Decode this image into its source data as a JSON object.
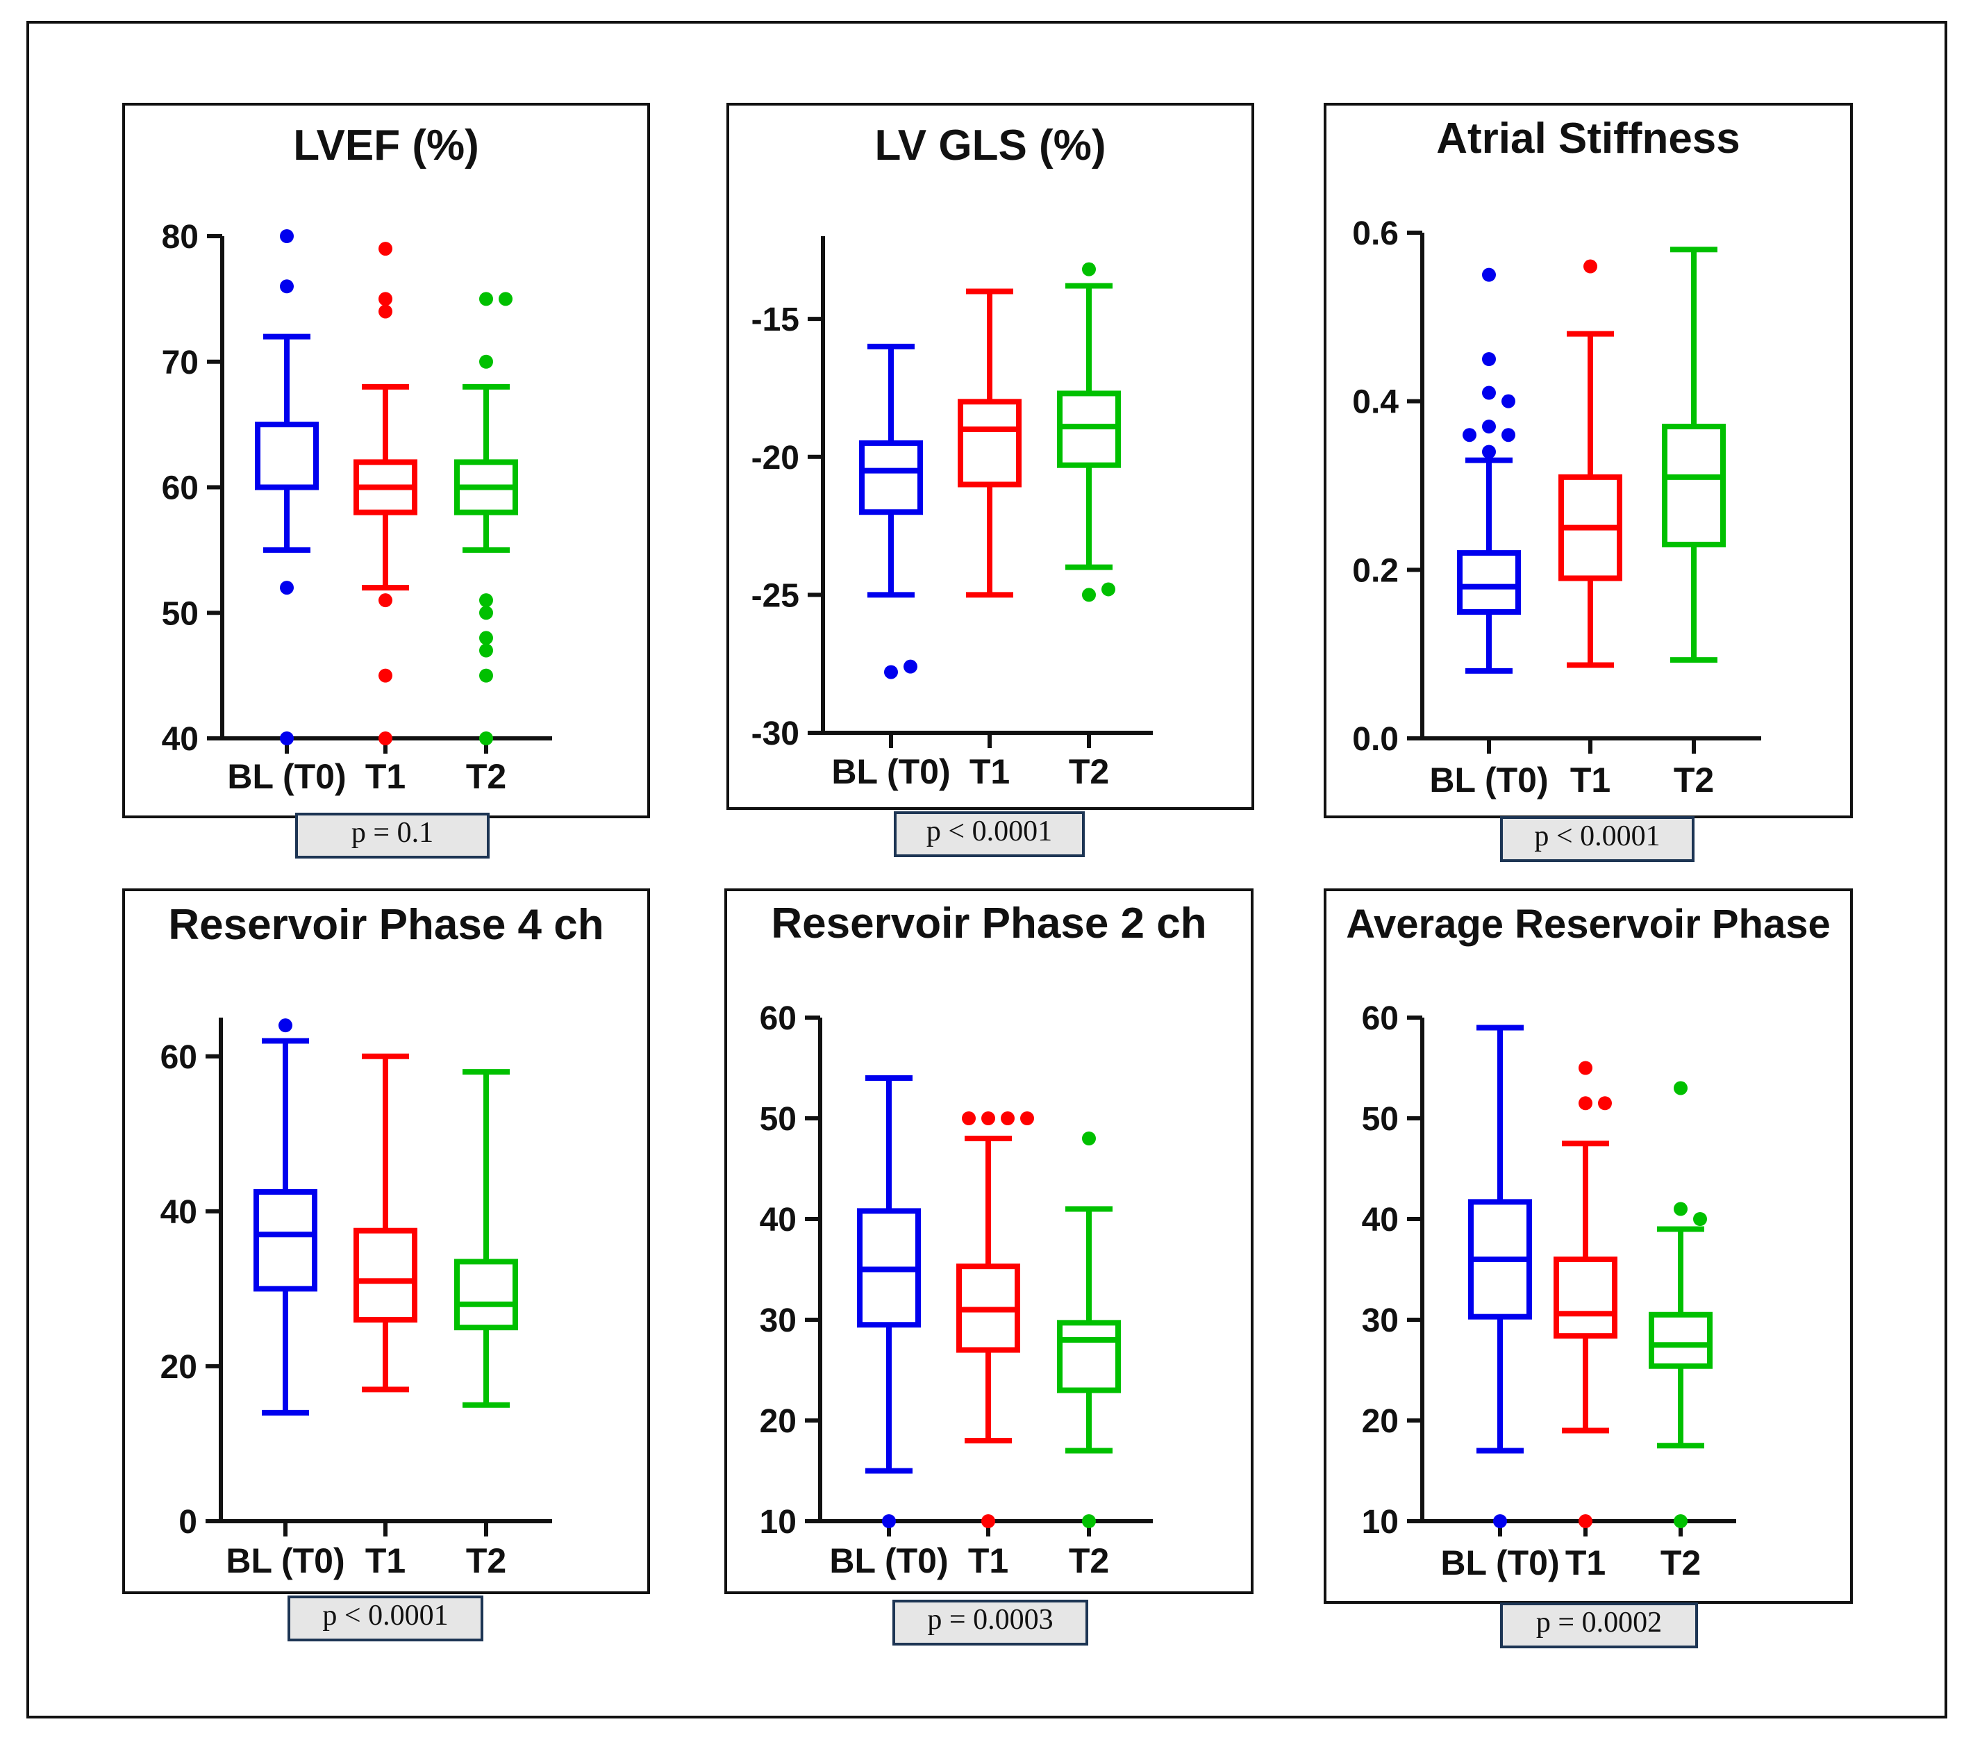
{
  "colors": {
    "T0": "#0000ee",
    "T1": "#ff0000",
    "T2": "#00c000",
    "axis": "#111111"
  },
  "chart_data": [
    {
      "type": "box",
      "title": "LVEF (%)",
      "categories": [
        "BL (T0)",
        "T1",
        "T2"
      ],
      "ylim": [
        40,
        80
      ],
      "yticks": [
        40,
        50,
        60,
        70,
        80
      ],
      "ytick_labels": [
        "40",
        "50",
        "60",
        "70",
        "80"
      ],
      "p_label": "p = 0.1",
      "series": [
        {
          "name": "BL (T0)",
          "min": 55,
          "q1": 60,
          "median": 60,
          "q3": 65,
          "max": 72,
          "outliers": [
            80,
            76,
            52,
            40
          ]
        },
        {
          "name": "T1",
          "min": 52,
          "q1": 58,
          "median": 60,
          "q3": 62,
          "max": 68,
          "outliers": [
            79,
            75,
            74,
            51,
            45,
            40
          ]
        },
        {
          "name": "T2",
          "min": 55,
          "q1": 58,
          "median": 60,
          "q3": 62,
          "max": 68,
          "outliers": [
            75,
            75,
            70,
            51,
            50,
            48,
            47,
            45,
            40
          ]
        }
      ]
    },
    {
      "type": "box",
      "title": "LV GLS (%)",
      "categories": [
        "BL (T0)",
        "T1",
        "T2"
      ],
      "ylim": [
        -30,
        -12
      ],
      "yticks": [
        -30,
        -25,
        -20,
        -15
      ],
      "ytick_labels": [
        "-30",
        "-25",
        "-20",
        "-15"
      ],
      "p_label": "p < 0.0001",
      "series": [
        {
          "name": "BL (T0)",
          "min": -25,
          "q1": -22,
          "median": -20.5,
          "q3": -19.5,
          "max": -16,
          "outliers": [
            -27.8,
            -27.6
          ]
        },
        {
          "name": "T1",
          "min": -25,
          "q1": -21,
          "median": -19,
          "q3": -18,
          "max": -14,
          "outliers": []
        },
        {
          "name": "T2",
          "min": -24,
          "q1": -20.3,
          "median": -18.9,
          "q3": -17.7,
          "max": -13.8,
          "outliers": [
            -13.2,
            -25,
            -24.8
          ]
        }
      ]
    },
    {
      "type": "box",
      "title": "Atrial Stiffness",
      "categories": [
        "BL (T0)",
        "T1",
        "T2"
      ],
      "ylim": [
        0.0,
        0.6
      ],
      "yticks": [
        0.0,
        0.2,
        0.4,
        0.6
      ],
      "ytick_labels": [
        "0.0",
        "0.2",
        "0.4",
        "0.6"
      ],
      "p_label": "p < 0.0001",
      "series": [
        {
          "name": "BL (T0)",
          "min": 0.08,
          "q1": 0.15,
          "median": 0.18,
          "q3": 0.22,
          "max": 0.33,
          "outliers": [
            0.55,
            0.45,
            0.41,
            0.4,
            0.37,
            0.36,
            0.36,
            0.34
          ]
        },
        {
          "name": "T1",
          "min": 0.087,
          "q1": 0.19,
          "median": 0.25,
          "q3": 0.31,
          "max": 0.48,
          "outliers": [
            0.56
          ]
        },
        {
          "name": "T2",
          "min": 0.093,
          "q1": 0.23,
          "median": 0.31,
          "q3": 0.37,
          "max": 0.58,
          "outliers": []
        }
      ]
    },
    {
      "type": "box",
      "title": "Reservoir Phase 4 ch",
      "categories": [
        "BL (T0)",
        "T1",
        "T2"
      ],
      "ylim": [
        0,
        65
      ],
      "yticks": [
        0,
        20,
        40,
        60
      ],
      "ytick_labels": [
        "0",
        "20",
        "40",
        "60"
      ],
      "p_label": "p < 0.0001",
      "series": [
        {
          "name": "BL (T0)",
          "min": 14,
          "q1": 30,
          "median": 37,
          "q3": 42.5,
          "max": 62,
          "outliers": [
            64
          ]
        },
        {
          "name": "T1",
          "min": 17,
          "q1": 26,
          "median": 31,
          "q3": 37.5,
          "max": 60,
          "outliers": []
        },
        {
          "name": "T2",
          "min": 15,
          "q1": 25,
          "median": 28,
          "q3": 33.5,
          "max": 58,
          "outliers": []
        }
      ]
    },
    {
      "type": "box",
      "title": "Reservoir Phase 2 ch",
      "categories": [
        "BL (T0)",
        "T1",
        "T2"
      ],
      "ylim": [
        10,
        60
      ],
      "yticks": [
        10,
        20,
        30,
        40,
        50,
        60
      ],
      "ytick_labels": [
        "10",
        "20",
        "30",
        "40",
        "50",
        "60"
      ],
      "p_label": "p = 0.0003",
      "series": [
        {
          "name": "BL (T0)",
          "min": 15,
          "q1": 29.5,
          "median": 35,
          "q3": 40.8,
          "max": 54,
          "outliers": [
            10
          ]
        },
        {
          "name": "T1",
          "min": 18,
          "q1": 27,
          "median": 31,
          "q3": 35.3,
          "max": 48,
          "outliers": [
            50,
            50,
            50,
            50,
            10
          ]
        },
        {
          "name": "T2",
          "min": 17,
          "q1": 23,
          "median": 28,
          "q3": 29.7,
          "max": 41,
          "outliers": [
            48,
            10
          ]
        }
      ]
    },
    {
      "type": "box",
      "title": "Average Reservoir Phase",
      "categories": [
        "BL (T0)",
        "T1",
        "T2"
      ],
      "ylim": [
        10,
        60
      ],
      "yticks": [
        10,
        20,
        30,
        40,
        50,
        60
      ],
      "ytick_labels": [
        "10",
        "20",
        "30",
        "40",
        "50",
        "60"
      ],
      "p_label": "p = 0.0002",
      "series": [
        {
          "name": "BL (T0)",
          "min": 17,
          "q1": 30.3,
          "median": 36,
          "q3": 41.7,
          "max": 59,
          "outliers": [
            10
          ]
        },
        {
          "name": "T1",
          "min": 19,
          "q1": 28.4,
          "median": 30.6,
          "q3": 36,
          "max": 47.5,
          "outliers": [
            55,
            51.5,
            51.5,
            10
          ]
        },
        {
          "name": "T2",
          "min": 17.5,
          "q1": 25.4,
          "median": 27.5,
          "q3": 30.5,
          "max": 39,
          "outliers": [
            53,
            41,
            40,
            10
          ]
        }
      ]
    }
  ]
}
